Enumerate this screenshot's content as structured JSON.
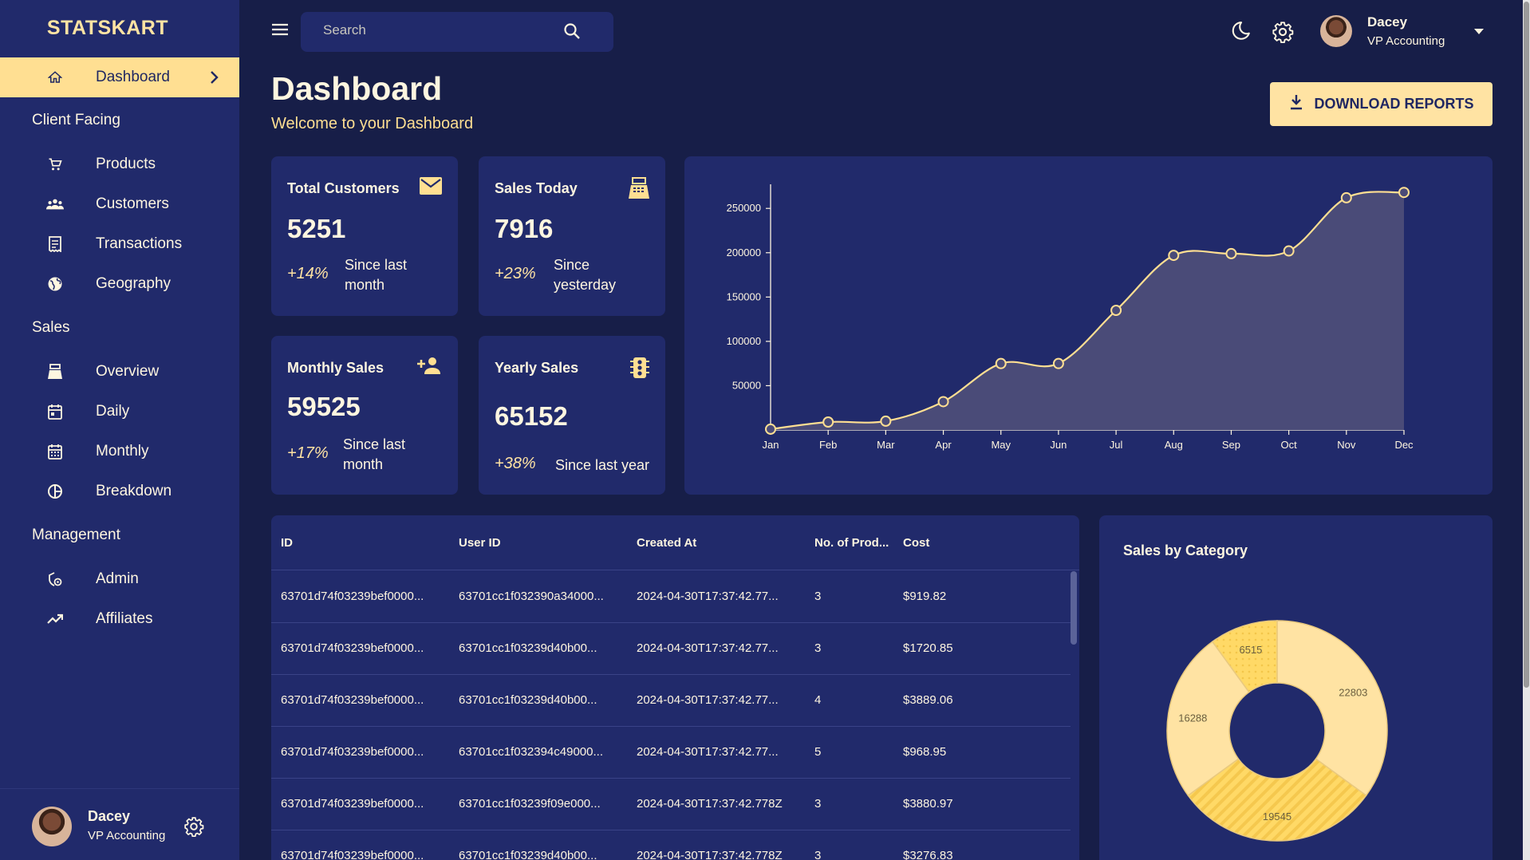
{
  "brand": "STATSKART",
  "sidebar": {
    "items": [
      {
        "label": "Dashboard",
        "icon": "home-icon",
        "active": true
      },
      {
        "section": "Client Facing"
      },
      {
        "label": "Products",
        "icon": "cart-icon"
      },
      {
        "label": "Customers",
        "icon": "groups-icon"
      },
      {
        "label": "Transactions",
        "icon": "receipt-icon"
      },
      {
        "label": "Geography",
        "icon": "globe-icon"
      },
      {
        "section": "Sales"
      },
      {
        "label": "Overview",
        "icon": "point-of-sale-icon"
      },
      {
        "label": "Daily",
        "icon": "calendar-today-icon"
      },
      {
        "label": "Monthly",
        "icon": "calendar-month-icon"
      },
      {
        "label": "Breakdown",
        "icon": "pie-chart-icon"
      },
      {
        "section": "Management"
      },
      {
        "label": "Admin",
        "icon": "admin-icon"
      },
      {
        "label": "Affiliates",
        "icon": "trending-up-icon"
      }
    ],
    "footer": {
      "name": "Dacey",
      "role": "VP Accounting"
    }
  },
  "topbar": {
    "search_placeholder": "Search",
    "user": {
      "name": "Dacey",
      "role": "VP Accounting"
    }
  },
  "header": {
    "title": "Dashboard",
    "subtitle": "Welcome to your Dashboard",
    "download_label": "DOWNLOAD REPORTS"
  },
  "stats": [
    {
      "title": "Total Customers",
      "value": "5251",
      "pct": "+14%",
      "desc": "Since last month",
      "icon": "mail-icon"
    },
    {
      "title": "Sales Today",
      "value": "7916",
      "pct": "+23%",
      "desc": "Since yesterday",
      "icon": "point-of-sale-icon"
    },
    {
      "title": "Monthly Sales",
      "value": "59525",
      "pct": "+17%",
      "desc": "Since last month",
      "icon": "person-add-icon"
    },
    {
      "title": "Yearly Sales",
      "value": "65152",
      "pct": "+38%",
      "desc": "Since last year",
      "icon": "traffic-icon"
    }
  ],
  "chart_data": [
    {
      "type": "area",
      "categories": [
        "Jan",
        "Feb",
        "Mar",
        "Apr",
        "May",
        "Jun",
        "Jul",
        "Aug",
        "Sep",
        "Oct",
        "Nov",
        "Dec"
      ],
      "values": [
        1000,
        9000,
        10000,
        32000,
        75000,
        75000,
        135000,
        197000,
        199000,
        202000,
        262000,
        268000
      ],
      "yticks": [
        50000,
        100000,
        150000,
        200000,
        250000
      ],
      "ylim": [
        0,
        270000
      ],
      "line_color": "#ffdf92",
      "fill_color": "#4a4b78"
    },
    {
      "type": "pie",
      "title": "Sales by Category",
      "labels": [
        "22803",
        "19545",
        "16288",
        "6515"
      ],
      "values": [
        22803,
        19545,
        16288,
        6515
      ],
      "colors": [
        "#ffe3a3",
        "#ffd966",
        "#ffe3a3",
        "#ffd966"
      ]
    }
  ],
  "table": {
    "columns": [
      "ID",
      "User ID",
      "Created At",
      "No. of Prod...",
      "Cost"
    ],
    "rows": [
      [
        "63701d74f03239bef0000...",
        "63701cc1f032390a34000...",
        "2024-04-30T17:37:42.77...",
        "3",
        "$919.82"
      ],
      [
        "63701d74f03239bef0000...",
        "63701cc1f03239d40b00...",
        "2024-04-30T17:37:42.77...",
        "3",
        "$1720.85"
      ],
      [
        "63701d74f03239bef0000...",
        "63701cc1f03239d40b00...",
        "2024-04-30T17:37:42.77...",
        "4",
        "$3889.06"
      ],
      [
        "63701d74f03239bef0000...",
        "63701cc1f032394c49000...",
        "2024-04-30T17:37:42.77...",
        "5",
        "$968.95"
      ],
      [
        "63701d74f03239bef0000...",
        "63701cc1f03239f09e000...",
        "2024-04-30T17:37:42.778Z",
        "3",
        "$3880.97"
      ],
      [
        "63701d74f03239bef0000...",
        "63701cc1f03239d40b00...",
        "2024-04-30T17:37:42.778Z",
        "3",
        "$3276.83"
      ]
    ]
  }
}
